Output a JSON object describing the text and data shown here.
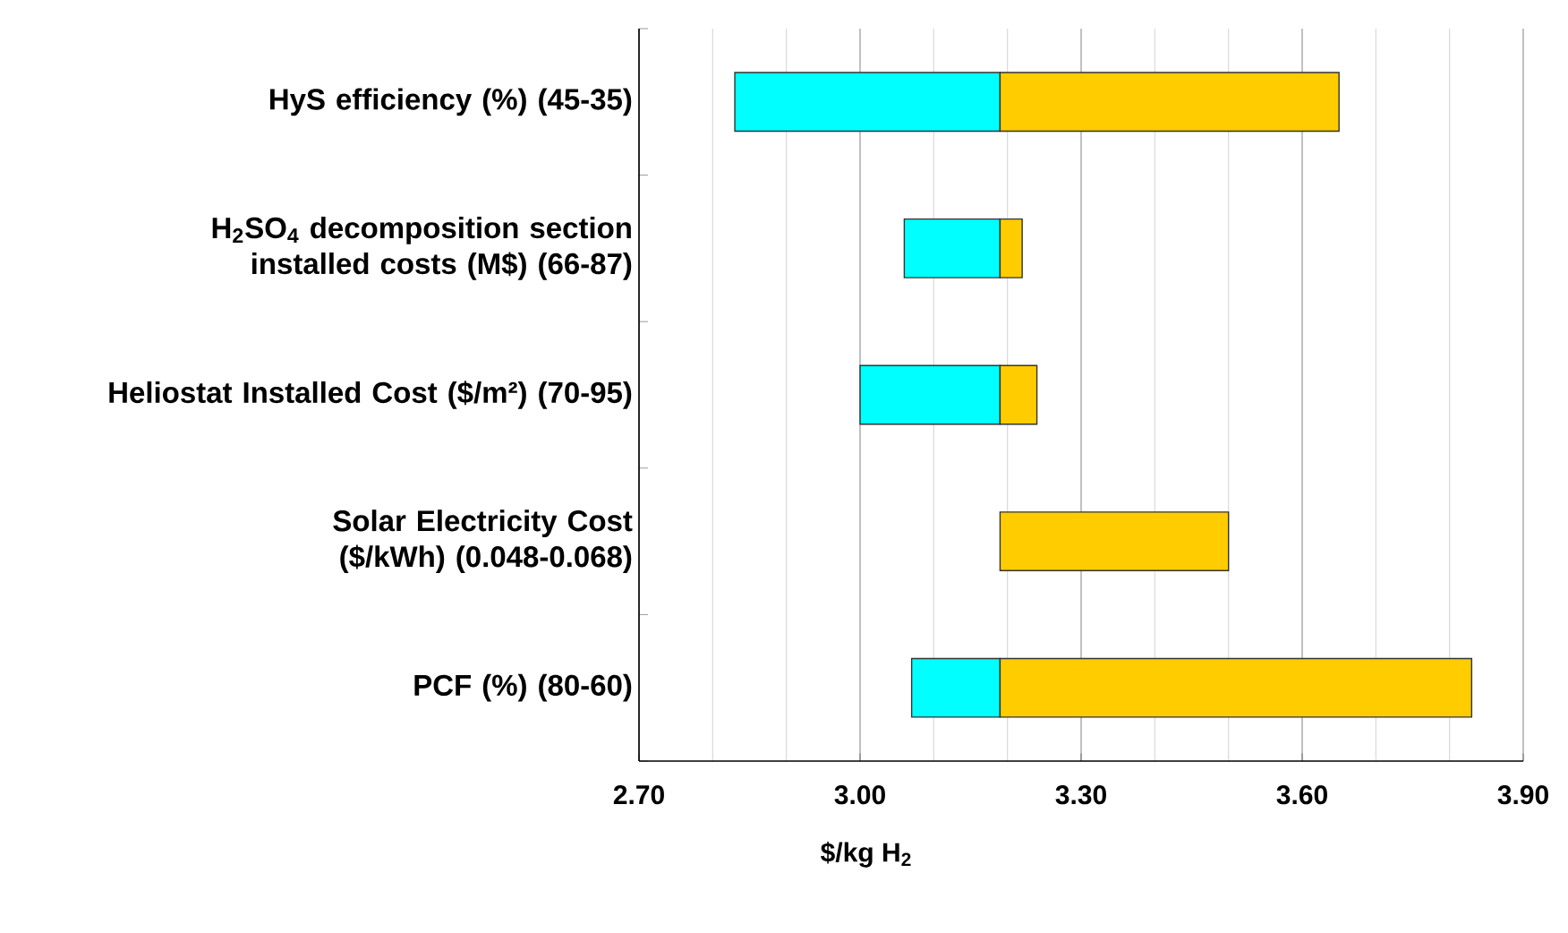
{
  "chart_data": {
    "type": "bar",
    "orientation": "horizontal",
    "categories": [
      "HyS efficiency (%) (45-35)",
      "H$_{2}$SO$_{4}$ decomposition section installed costs (M$) (66-87)",
      "Heliostat Installed Cost ($/m²) (70-95)",
      "Solar Electricity Cost ($/kWh) (0.048-0.068)",
      "PCF (%) (80-60)"
    ],
    "series": [
      {
        "color": "#00ffff",
        "base": [
          2.83,
          3.06,
          3.0,
          null,
          3.07
        ],
        "values": [
          0.36,
          0.13,
          0.19,
          null,
          0.12
        ]
      },
      {
        "color": "#ffcc00",
        "base": [
          3.19,
          3.19,
          3.19,
          3.19,
          3.19
        ],
        "values": [
          0.46,
          0.03,
          0.05,
          0.31,
          0.64
        ]
      }
    ],
    "xlabel": "$/kg H$_{2}$",
    "xlim": [
      2.7,
      3.9
    ],
    "xticks": [
      {
        "value": 2.7,
        "label": "2.70"
      },
      {
        "value": 3.0,
        "label": "3.00"
      },
      {
        "value": 3.3,
        "label": "3.30"
      },
      {
        "value": 3.6,
        "label": "3.60"
      },
      {
        "value": 3.9,
        "label": "3.90"
      }
    ],
    "grid": "x"
  }
}
